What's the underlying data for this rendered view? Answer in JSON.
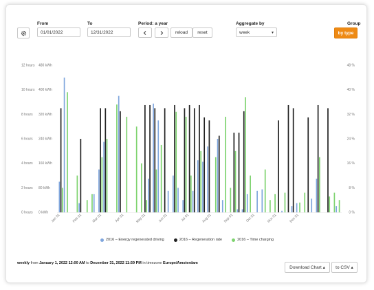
{
  "filters": {
    "from_label": "From",
    "from_value": "01/01/2022",
    "to_label": "To",
    "to_value": "12/31/2022",
    "period_label": "Period: a year",
    "prev_icon": "chevron-left-icon",
    "next_icon": "chevron-right-icon",
    "reload_label": "reload",
    "reset_label": "reset",
    "aggregate_label": "Aggregate by",
    "aggregate_value": "week",
    "group_label": "Group",
    "group_button": "by type",
    "settings_icon": "gear-icon"
  },
  "chart_data": {
    "type": "bar",
    "left_axis_ticks": [
      "0 hours",
      "2 hours",
      "4 hours",
      "6 hours",
      "8 hours",
      "10 hours",
      "12 hours"
    ],
    "energy_axis_ticks": [
      "0 kWh",
      "80 kWh",
      "160 kWh",
      "240 kWh",
      "320 kWh",
      "400 kWh",
      "480 kWh"
    ],
    "right_axis_ticks": [
      "0 %",
      "8 %",
      "16 %",
      "24 %",
      "32 %",
      "40 %",
      "48 %"
    ],
    "x_tick_labels": [
      "Jan 01",
      "Feb 01",
      "Mar 01",
      "Apr 01",
      "May 01",
      "Jun 01",
      "Jul 01",
      "Aug 01",
      "Sep 01",
      "Oct 01",
      "Nov 01",
      "Dec 01"
    ],
    "x_tick_week_index": [
      0,
      4.4,
      8.4,
      12.9,
      17.3,
      21.7,
      26.1,
      30.6,
      35,
      39.4,
      43.8,
      48.3
    ],
    "series": [
      {
        "name": "2016 – Energy regenerated driving",
        "color": "#7fa6dd",
        "unit": "kWh",
        "values": [
          100,
          440,
          0,
          0,
          30,
          0,
          0,
          60,
          140,
          230,
          0,
          0,
          380,
          0,
          0,
          0,
          0,
          0,
          110,
          355,
          300,
          0,
          70,
          120,
          80,
          40,
          0,
          70,
          170,
          165,
          215,
          0,
          240,
          40,
          0,
          0,
          10,
          10,
          60,
          0,
          70,
          75,
          0,
          0,
          0,
          5,
          0,
          20,
          30,
          0,
          0,
          45,
          110,
          0,
          0,
          0,
          20
        ]
      },
      {
        "name": "2016 – Regeneration rate",
        "color": "#222222",
        "unit": "%",
        "values": [
          34,
          0,
          0,
          0,
          24,
          0,
          0,
          0,
          34,
          34,
          0,
          0,
          33,
          0,
          0,
          0,
          0,
          35,
          35,
          34,
          0,
          34,
          0,
          35,
          0,
          34,
          35,
          34,
          35,
          31,
          30,
          0,
          25,
          0,
          0,
          26,
          26,
          33,
          0,
          0,
          0,
          0,
          0,
          0,
          30,
          0,
          35,
          34,
          0,
          0,
          31,
          0,
          35,
          0,
          34,
          0,
          0
        ]
      },
      {
        "name": "2016 – Time charging",
        "color": "#7ed36f",
        "unit": "hours",
        "values": [
          2,
          9.8,
          0,
          3,
          0,
          1,
          1.5,
          0,
          4.5,
          6,
          0,
          8.8,
          0,
          7.8,
          0,
          7,
          4,
          1,
          0,
          3.5,
          5.5,
          0,
          0,
          8.2,
          0,
          7.8,
          3,
          0,
          5,
          0,
          0,
          4.5,
          0,
          7.8,
          2,
          5,
          0,
          9.4,
          3,
          0,
          0,
          3.5,
          1,
          1.5,
          0,
          1.6,
          0,
          0,
          0.8,
          1.6,
          0,
          0,
          4.5,
          0,
          1.3,
          1.6,
          1
        ]
      }
    ],
    "legend_position": "bottom",
    "grid": false
  },
  "footer": {
    "aggregation": "weekly",
    "from_word": "from",
    "start": "January 1, 2022 12:00 AM",
    "to_word": "to",
    "end": "December 31, 2022 11:59 PM",
    "tz_text": "in timezone",
    "timezone": "Europe/Amsterdam"
  },
  "actions": {
    "download_label": "Download Chart ▴",
    "csv_label": "to CSV ▴"
  }
}
